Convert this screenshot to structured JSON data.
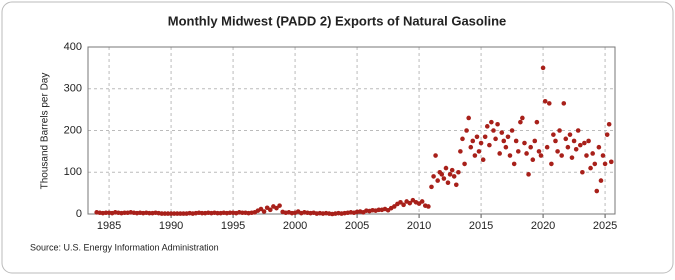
{
  "chart_data": {
    "type": "scatter",
    "title": "Monthly Midwest (PADD 2) Exports of Natural Gasoline",
    "y_label": "Thousand Barrels per Day",
    "source": "Source: U.S. Energy Information Administration",
    "color": "#a8201a",
    "grid": true,
    "xlim": [
      1983.3,
      2025.8
    ],
    "ylim": [
      0,
      400
    ],
    "xticks": [
      1985,
      1990,
      1995,
      2000,
      2005,
      2010,
      2015,
      2020,
      2025
    ],
    "yticks": [
      0,
      100,
      200,
      300,
      400
    ],
    "x": [
      1984,
      1984.25,
      1984.5,
      1984.75,
      1985,
      1985.25,
      1985.5,
      1985.75,
      1986,
      1986.25,
      1986.5,
      1986.75,
      1987,
      1987.25,
      1987.5,
      1987.75,
      1988,
      1988.25,
      1988.5,
      1988.75,
      1989,
      1989.25,
      1989.5,
      1989.75,
      1990,
      1990.25,
      1990.5,
      1990.75,
      1991,
      1991.25,
      1991.5,
      1991.75,
      1992,
      1992.25,
      1992.5,
      1992.75,
      1993,
      1993.25,
      1993.5,
      1993.75,
      1994,
      1994.25,
      1994.5,
      1994.75,
      1995,
      1995.25,
      1995.5,
      1995.75,
      1996,
      1996.25,
      1996.5,
      1996.75,
      1997,
      1997.25,
      1997.5,
      1997.75,
      1998,
      1998.25,
      1998.5,
      1998.75,
      1999,
      1999.25,
      1999.5,
      1999.75,
      2000,
      2000.25,
      2000.5,
      2000.75,
      2001,
      2001.25,
      2001.5,
      2001.75,
      2002,
      2002.25,
      2002.5,
      2002.75,
      2003,
      2003.25,
      2003.5,
      2003.75,
      2004,
      2004.25,
      2004.5,
      2004.75,
      2005,
      2005.25,
      2005.5,
      2005.75,
      2006,
      2006.25,
      2006.5,
      2006.75,
      2007,
      2007.25,
      2007.5,
      2007.75,
      2008,
      2008.25,
      2008.5,
      2008.75,
      2009,
      2009.25,
      2009.5,
      2009.75,
      2010,
      2010.25,
      2010.5,
      2010.75,
      2011,
      2011.17,
      2011.33,
      2011.5,
      2011.67,
      2011.83,
      2012,
      2012.17,
      2012.33,
      2012.5,
      2012.67,
      2012.83,
      2013,
      2013.17,
      2013.33,
      2013.5,
      2013.67,
      2013.83,
      2014,
      2014.17,
      2014.33,
      2014.5,
      2014.67,
      2014.83,
      2015,
      2015.17,
      2015.33,
      2015.5,
      2015.67,
      2015.83,
      2016,
      2016.17,
      2016.33,
      2016.5,
      2016.67,
      2016.83,
      2017,
      2017.17,
      2017.33,
      2017.5,
      2017.67,
      2017.83,
      2018,
      2018.17,
      2018.33,
      2018.5,
      2018.67,
      2018.83,
      2019,
      2019.17,
      2019.33,
      2019.5,
      2019.67,
      2019.83,
      2020,
      2020.17,
      2020.33,
      2020.5,
      2020.67,
      2020.83,
      2021,
      2021.17,
      2021.33,
      2021.5,
      2021.67,
      2021.83,
      2022,
      2022.17,
      2022.33,
      2022.5,
      2022.67,
      2022.83,
      2023,
      2023.17,
      2023.33,
      2023.5,
      2023.67,
      2023.83,
      2024,
      2024.17,
      2024.33,
      2024.5,
      2024.67,
      2024.83,
      2025,
      2025.17,
      2025.33,
      2025.5
    ],
    "values": [
      4,
      3,
      2,
      3,
      3,
      2,
      4,
      3,
      2,
      3,
      3,
      4,
      3,
      2,
      3,
      2,
      3,
      2,
      2,
      3,
      2,
      1,
      1,
      1,
      1,
      1,
      1,
      1,
      1,
      1,
      2,
      1,
      2,
      3,
      2,
      2,
      3,
      2,
      3,
      2,
      2,
      3,
      2,
      3,
      3,
      2,
      4,
      3,
      3,
      2,
      3,
      4,
      8,
      12,
      6,
      15,
      10,
      18,
      14,
      20,
      5,
      3,
      4,
      2,
      3,
      6,
      2,
      4,
      3,
      2,
      3,
      1,
      2,
      1,
      2,
      1,
      0,
      1,
      2,
      1,
      2,
      3,
      4,
      3,
      5,
      6,
      4,
      8,
      7,
      9,
      8,
      10,
      10,
      12,
      9,
      14,
      18,
      24,
      28,
      22,
      30,
      26,
      33,
      28,
      25,
      30,
      20,
      18,
      65,
      90,
      140,
      80,
      100,
      95,
      85,
      110,
      75,
      95,
      105,
      90,
      70,
      100,
      150,
      180,
      120,
      200,
      230,
      160,
      175,
      140,
      185,
      150,
      170,
      130,
      185,
      210,
      165,
      220,
      200,
      180,
      215,
      145,
      195,
      175,
      160,
      185,
      140,
      200,
      120,
      175,
      150,
      220,
      230,
      170,
      145,
      95,
      160,
      130,
      175,
      220,
      150,
      140,
      350,
      270,
      160,
      265,
      120,
      190,
      175,
      150,
      200,
      140,
      265,
      180,
      160,
      190,
      135,
      175,
      155,
      200,
      165,
      100,
      170,
      140,
      175,
      110,
      145,
      120,
      55,
      160,
      80,
      140,
      120,
      190,
      215,
      125
    ]
  }
}
